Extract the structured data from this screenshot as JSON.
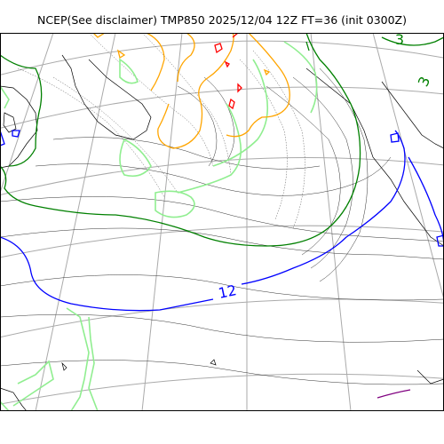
{
  "figure": {
    "title": "NCEP(See disclaimer) TMP850 2025/12/04 12Z FT=36 (init 0300Z)"
  },
  "contour_labels": {
    "blue_12": "12",
    "green_3_top": "3",
    "green_3_right": "3"
  },
  "colors": {
    "coastline": "#000000",
    "height_contour": "#333333",
    "graticule": "#aaaaaa",
    "contour_12": "#0000ff",
    "contour_3": "#008000",
    "contour_0": "#90ee90",
    "contour_minus3": "#ffa500",
    "contour_minus6": "#ff0000",
    "contour_15": "#800080"
  }
}
